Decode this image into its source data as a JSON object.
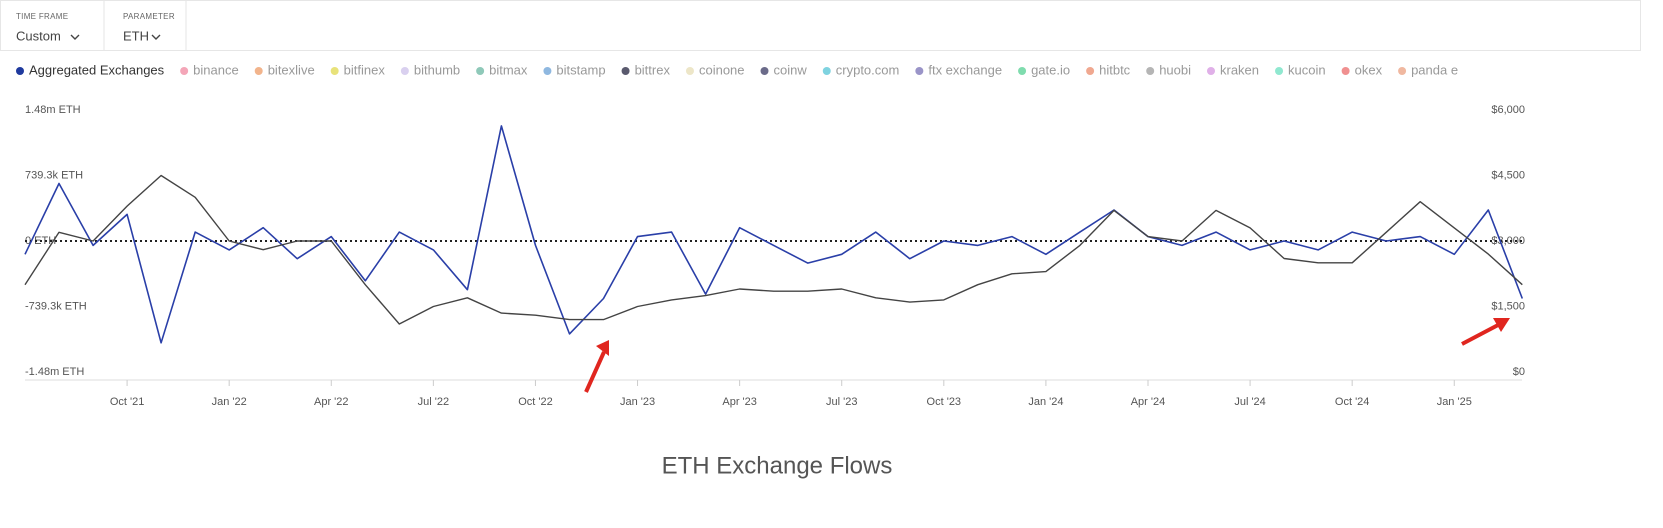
{
  "filters": [
    {
      "label": "TIME FRAME",
      "value": "Custom"
    },
    {
      "label": "PARAMETER",
      "value": "ETH"
    }
  ],
  "legend": [
    {
      "name": "Aggregated Exchanges",
      "color": "#1f3a9e"
    },
    {
      "name": "binance",
      "color": "#f4a6b8"
    },
    {
      "name": "bitexlive",
      "color": "#f2b48c"
    },
    {
      "name": "bitfinex",
      "color": "#e8e27a"
    },
    {
      "name": "bithumb",
      "color": "#d9d0ef"
    },
    {
      "name": "bitmax",
      "color": "#8fc9b9"
    },
    {
      "name": "bitstamp",
      "color": "#8fb8e0"
    },
    {
      "name": "bittrex",
      "color": "#5a5a6e"
    },
    {
      "name": "coinone",
      "color": "#ede6c8"
    },
    {
      "name": "coinw",
      "color": "#6b6b8a"
    },
    {
      "name": "crypto.com",
      "color": "#7fd3e0"
    },
    {
      "name": "ftx exchange",
      "color": "#9a94c8"
    },
    {
      "name": "gate.io",
      "color": "#7fdcae"
    },
    {
      "name": "hitbtc",
      "color": "#f0a890"
    },
    {
      "name": "huobi",
      "color": "#b5b5b5"
    },
    {
      "name": "kraken",
      "color": "#e0b0e8"
    },
    {
      "name": "kucoin",
      "color": "#90e8d0"
    },
    {
      "name": "okex",
      "color": "#f09090"
    },
    {
      "name": "panda e",
      "color": "#f0b8a0"
    }
  ],
  "caption": "ETH Exchange Flows",
  "chart_data": {
    "type": "line",
    "x": [
      "2021-07",
      "2021-08",
      "2021-09",
      "2021-10",
      "2021-11",
      "2021-12",
      "2022-01",
      "2022-02",
      "2022-03",
      "2022-04",
      "2022-05",
      "2022-06",
      "2022-07",
      "2022-08",
      "2022-09",
      "2022-10",
      "2022-11",
      "2022-12",
      "2023-01",
      "2023-02",
      "2023-03",
      "2023-04",
      "2023-05",
      "2023-06",
      "2023-07",
      "2023-08",
      "2023-09",
      "2023-10",
      "2023-11",
      "2023-12",
      "2024-01",
      "2024-02",
      "2024-03",
      "2024-04",
      "2024-05",
      "2024-06",
      "2024-07",
      "2024-08",
      "2024-09",
      "2024-10",
      "2024-11",
      "2024-12",
      "2025-01",
      "2025-02",
      "2025-03"
    ],
    "series": [
      {
        "name": "Aggregated Exchanges",
        "color": "#2a3fa8",
        "axis": "y",
        "values": [
          -150000,
          650000,
          -50000,
          300000,
          -1150000,
          100000,
          -100000,
          150000,
          -200000,
          50000,
          -450000,
          100000,
          -100000,
          -550000,
          1300000,
          -50000,
          -1050000,
          -650000,
          50000,
          100000,
          -600000,
          150000,
          -50000,
          -250000,
          -150000,
          100000,
          -200000,
          0,
          -50000,
          50000,
          -150000,
          100000,
          350000,
          50000,
          -50000,
          100000,
          -100000,
          0,
          -100000,
          100000,
          0,
          50000,
          -150000,
          350000,
          -650000
        ]
      },
      {
        "color": "#444444",
        "axis": "y2",
        "values": [
          2000,
          3200,
          3000,
          3800,
          4500,
          4000,
          3000,
          2800,
          3000,
          3000,
          2000,
          1100,
          1500,
          1700,
          1350,
          1300,
          1200,
          1200,
          1500,
          1650,
          1750,
          1900,
          1850,
          1850,
          1900,
          1700,
          1600,
          1650,
          2000,
          2250,
          2300,
          2900,
          3700,
          3100,
          3000,
          3700,
          3300,
          2600,
          2500,
          2500,
          3200,
          3900,
          3300,
          2700,
          2000
        ]
      }
    ],
    "ylim": [
      -1480000,
      1480000
    ],
    "yticks": [
      {
        "value": -1480000,
        "label": "-1.48m ETH"
      },
      {
        "value": -739300,
        "label": "-739.3k ETH"
      },
      {
        "value": 0,
        "label": "0 ETH"
      },
      {
        "value": 739300,
        "label": "739.3k ETH"
      },
      {
        "value": 1480000,
        "label": "1.48m ETH"
      }
    ],
    "y2lim": [
      0,
      6000
    ],
    "y2ticks": [
      {
        "value": 0,
        "label": "$0"
      },
      {
        "value": 1500,
        "label": "$1,500"
      },
      {
        "value": 3000,
        "label": "$3,000"
      },
      {
        "value": 4500,
        "label": "$4,500"
      },
      {
        "value": 6000,
        "label": "$6,000"
      }
    ],
    "xticks": [
      {
        "value": "2021-10",
        "label": "Oct '21"
      },
      {
        "value": "2022-01",
        "label": "Jan '22"
      },
      {
        "value": "2022-04",
        "label": "Apr '22"
      },
      {
        "value": "2022-07",
        "label": "Jul '22"
      },
      {
        "value": "2022-10",
        "label": "Oct '22"
      },
      {
        "value": "2023-01",
        "label": "Jan '23"
      },
      {
        "value": "2023-04",
        "label": "Apr '23"
      },
      {
        "value": "2023-07",
        "label": "Jul '23"
      },
      {
        "value": "2023-10",
        "label": "Oct '23"
      },
      {
        "value": "2024-01",
        "label": "Jan '24"
      },
      {
        "value": "2024-04",
        "label": "Apr '24"
      },
      {
        "value": "2024-07",
        "label": "Jul '24"
      },
      {
        "value": "2024-10",
        "label": "Oct '24"
      },
      {
        "value": "2025-01",
        "label": "Jan '25"
      }
    ]
  }
}
